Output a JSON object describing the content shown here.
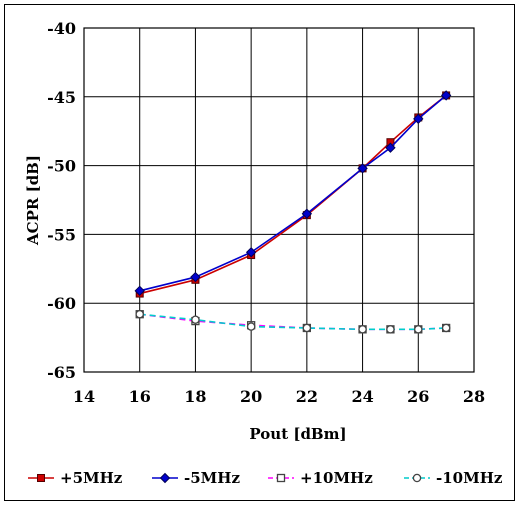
{
  "chart_data": {
    "type": "line",
    "xlabel": "Pout  [dBm]",
    "ylabel": "ACPR [dB]",
    "xlim": [
      14,
      28
    ],
    "ylim": [
      -65,
      -40
    ],
    "xticks": [
      "14",
      "16",
      "18",
      "20",
      "22",
      "24",
      "26",
      "28"
    ],
    "yticks": [
      "-40",
      "-45",
      "-50",
      "-55",
      "-60",
      "-65"
    ],
    "grid": true,
    "legend_position": "bottom",
    "series": [
      {
        "name": "+5MHz",
        "color": "#cc0000",
        "marker": "square-filled",
        "dash": "solid",
        "x": [
          16,
          18,
          20,
          22,
          24,
          25,
          26,
          27
        ],
        "y": [
          -59.3,
          -58.3,
          -56.5,
          -53.6,
          -50.2,
          -48.3,
          -46.5,
          -44.9
        ]
      },
      {
        "name": "-5MHz",
        "color": "#0000cc",
        "marker": "diamond-filled",
        "dash": "solid",
        "x": [
          16,
          18,
          20,
          22,
          24,
          25,
          26,
          27
        ],
        "y": [
          -59.1,
          -58.1,
          -56.3,
          -53.5,
          -50.2,
          -48.7,
          -46.6,
          -44.9
        ]
      },
      {
        "name": "+10MHz",
        "color": "#ff00ff",
        "marker": "square-open",
        "dash": "dashed",
        "x": [
          16,
          18,
          20,
          22,
          24,
          25,
          26,
          27
        ],
        "y": [
          -60.8,
          -61.3,
          -61.6,
          -61.8,
          -61.9,
          -61.9,
          -61.9,
          -61.8
        ]
      },
      {
        "name": "-10MHz",
        "color": "#00cccc",
        "marker": "circle-open",
        "dash": "dashed",
        "x": [
          16,
          18,
          20,
          22,
          24,
          25,
          26,
          27
        ],
        "y": [
          -60.8,
          -61.2,
          -61.7,
          -61.8,
          -61.9,
          -61.9,
          -61.9,
          -61.8
        ]
      }
    ]
  }
}
